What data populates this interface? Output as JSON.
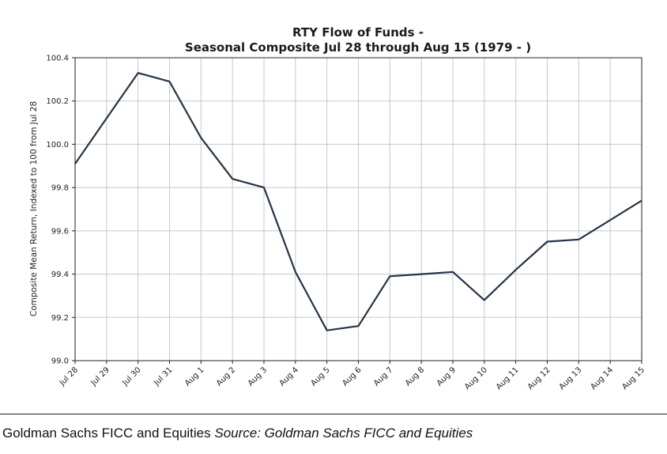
{
  "chart_data": {
    "type": "line",
    "title": [
      "RTY Flow of Funds -",
      "Seasonal Composite Jul 28 through Aug 15 (1979 - )"
    ],
    "xlabel": "",
    "ylabel": "Composite Mean Return, Indexed to 100 from Jul 28",
    "categories": [
      "Jul 28",
      "Jul 29",
      "Jul 30",
      "Jul 31",
      "Aug 1",
      "Aug 2",
      "Aug 3",
      "Aug 4",
      "Aug 5",
      "Aug 6",
      "Aug 7",
      "Aug 8",
      "Aug 9",
      "Aug 10",
      "Aug 11",
      "Aug 12",
      "Aug 13",
      "Aug 14",
      "Aug 15"
    ],
    "values": [
      99.91,
      100.12,
      100.33,
      100.29,
      100.03,
      99.84,
      99.8,
      99.41,
      99.14,
      99.16,
      99.39,
      99.4,
      99.41,
      99.28,
      99.42,
      99.55,
      99.56,
      99.65,
      99.74
    ],
    "ylim": [
      99.0,
      100.4
    ],
    "yticks": [
      "99.0",
      "99.2",
      "99.4",
      "99.6",
      "99.8",
      "100.0",
      "100.2",
      "100.4"
    ],
    "grid": true,
    "line_color": "#243447"
  },
  "caption": {
    "source_name": "Goldman Sachs FICC and Equities",
    "source_label": "Source: Goldman Sachs FICC and Equities"
  }
}
